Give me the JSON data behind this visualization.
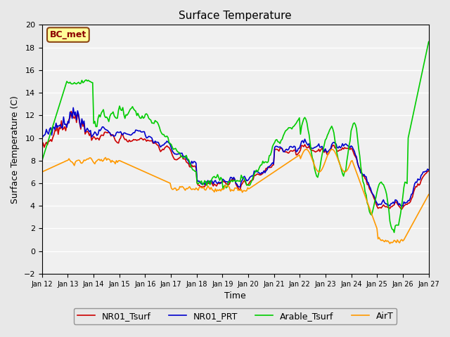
{
  "title": "Surface Temperature",
  "xlabel": "Time",
  "ylabel": "Surface Temperature (C)",
  "ylim": [
    -2,
    20
  ],
  "yticks": [
    -2,
    0,
    2,
    4,
    6,
    8,
    10,
    12,
    14,
    16,
    18,
    20
  ],
  "n_days": 15,
  "xtick_labels": [
    "Jan 12",
    "Jan 13",
    "Jan 14",
    "Jan 15",
    "Jan 16",
    "Jan 17",
    "Jan 18",
    "Jan 19",
    "Jan 20",
    "Jan 21",
    "Jan 22",
    "Jan 23",
    "Jan 24",
    "Jan 25",
    "Jan 26",
    "Jan 27"
  ],
  "colors": {
    "NR01_Tsurf": "#cc0000",
    "NR01_PRT": "#0000cc",
    "Arable_Tsurf": "#00cc00",
    "AirT": "#ff9900"
  },
  "annotation_text": "BC_met",
  "annotation_facecolor": "#ffff99",
  "annotation_edgecolor": "#8b4513",
  "annotation_textcolor": "#8b0000",
  "background_color": "#e8e8e8",
  "plot_bg_color": "#f0f0f0",
  "grid_color": "#ffffff",
  "linewidth": 1.2,
  "legend_items": [
    "NR01_Tsurf",
    "NR01_PRT",
    "Arable_Tsurf",
    "AirT"
  ]
}
